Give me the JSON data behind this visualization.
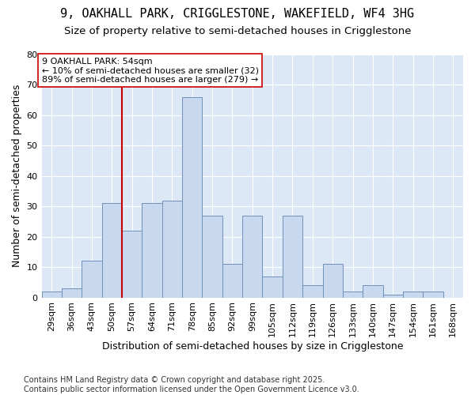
{
  "title1": "9, OAKHALL PARK, CRIGGLESTONE, WAKEFIELD, WF4 3HG",
  "title2": "Size of property relative to semi-detached houses in Crigglestone",
  "xlabel": "Distribution of semi-detached houses by size in Crigglestone",
  "ylabel": "Number of semi-detached properties",
  "categories": [
    "29sqm",
    "36sqm",
    "43sqm",
    "50sqm",
    "57sqm",
    "64sqm",
    "71sqm",
    "78sqm",
    "85sqm",
    "92sqm",
    "99sqm",
    "105sqm",
    "112sqm",
    "119sqm",
    "126sqm",
    "133sqm",
    "140sqm",
    "147sqm",
    "154sqm",
    "161sqm",
    "168sqm"
  ],
  "values": [
    2,
    3,
    12,
    31,
    22,
    31,
    32,
    66,
    27,
    11,
    27,
    7,
    27,
    4,
    11,
    2,
    4,
    1,
    2,
    2,
    0
  ],
  "bar_color": "#c8d8ee",
  "bar_edge_color": "#7090b8",
  "annotation_text": "9 OAKHALL PARK: 54sqm\n← 10% of semi-detached houses are smaller (32)\n89% of semi-detached houses are larger (279) →",
  "vline_x": 3.5,
  "vline_color": "#cc0000",
  "box_color": "#cc0000",
  "ylim": [
    0,
    80
  ],
  "yticks": [
    0,
    10,
    20,
    30,
    40,
    50,
    60,
    70,
    80
  ],
  "footnote": "Contains HM Land Registry data © Crown copyright and database right 2025.\nContains public sector information licensed under the Open Government Licence v3.0.",
  "fig_bg_color": "#ffffff",
  "plot_bg_color": "#dce8f5",
  "title_fontsize": 11,
  "subtitle_fontsize": 9.5,
  "axis_label_fontsize": 9,
  "tick_fontsize": 8,
  "annotation_fontsize": 8,
  "footnote_fontsize": 7
}
